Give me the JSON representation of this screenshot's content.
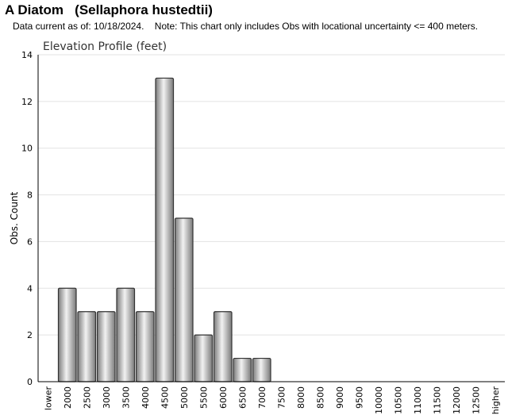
{
  "header": {
    "title": "A Diatom   (Sellaphora hustedtii)",
    "subtitle": "Data current as of: 10/18/2024.    Note: This chart only includes Obs with locational uncertainty <= 400 meters."
  },
  "chart_data": {
    "type": "bar",
    "title": "Elevation Profile (feet)",
    "xlabel": "",
    "ylabel": "Obs. Count",
    "ylim": [
      0,
      14
    ],
    "yticks": [
      0,
      2,
      4,
      6,
      8,
      10,
      12,
      14
    ],
    "grid": true,
    "categories": [
      "lower",
      "2000",
      "2500",
      "3000",
      "3500",
      "4000",
      "4500",
      "5000",
      "5500",
      "6000",
      "6500",
      "7000",
      "7500",
      "8000",
      "8500",
      "9000",
      "9500",
      "10000",
      "10500",
      "11000",
      "11500",
      "12000",
      "12500",
      "higher"
    ],
    "values": [
      0,
      4,
      3,
      3,
      4,
      3,
      13,
      7,
      2,
      3,
      1,
      1,
      0,
      0,
      0,
      0,
      0,
      0,
      0,
      0,
      0,
      0,
      0,
      0
    ],
    "colors": {
      "bar_edge": "#333333",
      "bar_light": "#f2f2f2",
      "bar_dark": "#7a7a7a",
      "grid": "#e3e3e3",
      "axis": "#000000"
    }
  }
}
